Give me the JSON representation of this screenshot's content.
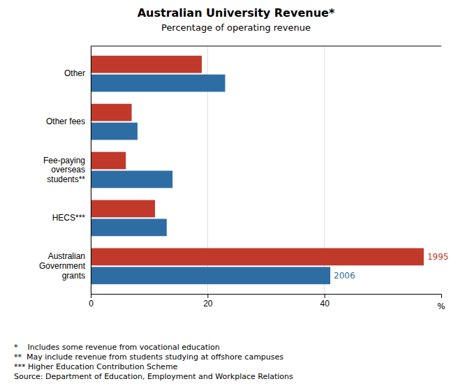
{
  "chart_data": {
    "type": "bar",
    "orientation": "horizontal",
    "title": "Australian University Revenue*",
    "subtitle": "Percentage of operating revenue",
    "categories": [
      "Australian\nGovernment\ngrants",
      "HECS***",
      "Fee-paying\noverseas\nstudents**",
      "Other fees",
      "Other"
    ],
    "series": [
      {
        "name": "1995",
        "color": "#c0392b",
        "values": [
          57,
          11,
          6,
          7,
          19
        ]
      },
      {
        "name": "2006",
        "color": "#2e6da4",
        "values": [
          41,
          13,
          14,
          8,
          23
        ]
      }
    ],
    "xlim": [
      0,
      60
    ],
    "xticks": [
      0,
      20,
      40
    ],
    "xlabel": "%",
    "grid": true,
    "footnotes": [
      "*    Includes some revenue from vocational education",
      "**  May include revenue from students studying at offshore campuses",
      "*** Higher Education Contribution Scheme",
      "Source: Department of Education, Employment and Workplace Relations"
    ]
  }
}
